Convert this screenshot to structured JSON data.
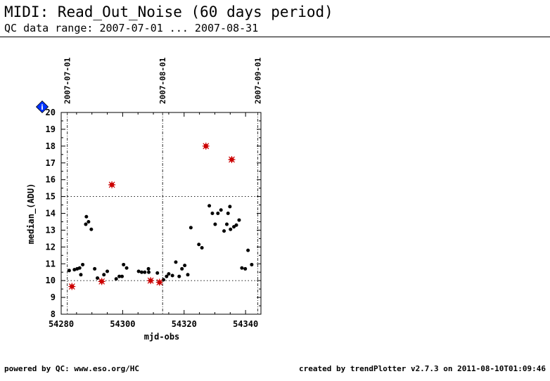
{
  "page": {
    "title": "MIDI: Read_Out_Noise (60 days period)",
    "subtitle": "QC data range: 2007-07-01 ... 2007-08-31",
    "footer_left": "powered by QC: www.eso.org/HC",
    "footer_right": "created by trendPlotter v2.7.3 on 2011-08-10T01:09:46"
  },
  "colors": {
    "normal_point": "#000000",
    "outlier_point": "#cc0000",
    "info_icon": "#0033ff"
  },
  "info_icon_label": "i",
  "chart_data": {
    "type": "scatter",
    "xlabel": "mjd-obs",
    "ylabel": "median_(ADU)",
    "xlim": [
      54280,
      54345
    ],
    "ylim": [
      8,
      20
    ],
    "xticks": [
      54280,
      54300,
      54320,
      54340
    ],
    "yticks": [
      8,
      9,
      10,
      11,
      12,
      13,
      14,
      15,
      16,
      17,
      18,
      19,
      20
    ],
    "thresholds": [
      10,
      15
    ],
    "date_markers": [
      {
        "x": 54282,
        "label": "2007-07-01"
      },
      {
        "x": 54313,
        "label": "2007-08-01"
      },
      {
        "x": 54344,
        "label": "2007-09-01"
      }
    ],
    "series": [
      {
        "role": "normal",
        "points": [
          [
            54282.6,
            10.6
          ],
          [
            54284.3,
            10.65
          ],
          [
            54285.2,
            10.7
          ],
          [
            54286.0,
            10.75
          ],
          [
            54286.4,
            10.35
          ],
          [
            54287.0,
            10.95
          ],
          [
            54288.0,
            13.35
          ],
          [
            54288.2,
            13.8
          ],
          [
            54288.9,
            13.5
          ],
          [
            54289.8,
            13.05
          ],
          [
            54290.9,
            10.7
          ],
          [
            54291.8,
            10.15
          ],
          [
            54293.9,
            10.35
          ],
          [
            54295.0,
            10.55
          ],
          [
            54297.9,
            10.1
          ],
          [
            54298.9,
            10.25
          ],
          [
            54299.8,
            10.25
          ],
          [
            54300.3,
            10.95
          ],
          [
            54301.3,
            10.75
          ],
          [
            54305.2,
            10.55
          ],
          [
            54306.2,
            10.5
          ],
          [
            54307.2,
            10.5
          ],
          [
            54308.4,
            10.7
          ],
          [
            54308.5,
            10.5
          ],
          [
            54311.3,
            10.45
          ],
          [
            54313.3,
            10.05
          ],
          [
            54314.3,
            10.25
          ],
          [
            54315.0,
            10.4
          ],
          [
            54316.2,
            10.3
          ],
          [
            54317.3,
            11.1
          ],
          [
            54318.4,
            10.25
          ],
          [
            54319.3,
            10.7
          ],
          [
            54320.2,
            10.9
          ],
          [
            54321.2,
            10.35
          ],
          [
            54322.2,
            13.15
          ],
          [
            54324.8,
            12.15
          ],
          [
            54325.8,
            11.95
          ],
          [
            54328.2,
            14.45
          ],
          [
            54329.2,
            14.0
          ],
          [
            54330.1,
            13.35
          ],
          [
            54331.0,
            14.0
          ],
          [
            54332.0,
            14.2
          ],
          [
            54333.0,
            12.95
          ],
          [
            54333.9,
            13.35
          ],
          [
            54334.3,
            14.0
          ],
          [
            54334.9,
            14.4
          ],
          [
            54335.1,
            13.05
          ],
          [
            54336.2,
            13.2
          ],
          [
            54337.0,
            13.3
          ],
          [
            54337.9,
            13.6
          ],
          [
            54338.8,
            10.75
          ],
          [
            54339.9,
            10.7
          ],
          [
            54340.8,
            11.8
          ],
          [
            54342.0,
            10.95
          ]
        ]
      },
      {
        "role": "outlier",
        "points": [
          [
            54283.5,
            9.65
          ],
          [
            54293.2,
            9.95
          ],
          [
            54296.5,
            15.7
          ],
          [
            54309.1,
            10.0
          ],
          [
            54312.0,
            9.9
          ],
          [
            54327.1,
            18.0
          ],
          [
            54335.5,
            17.2
          ]
        ]
      }
    ]
  }
}
